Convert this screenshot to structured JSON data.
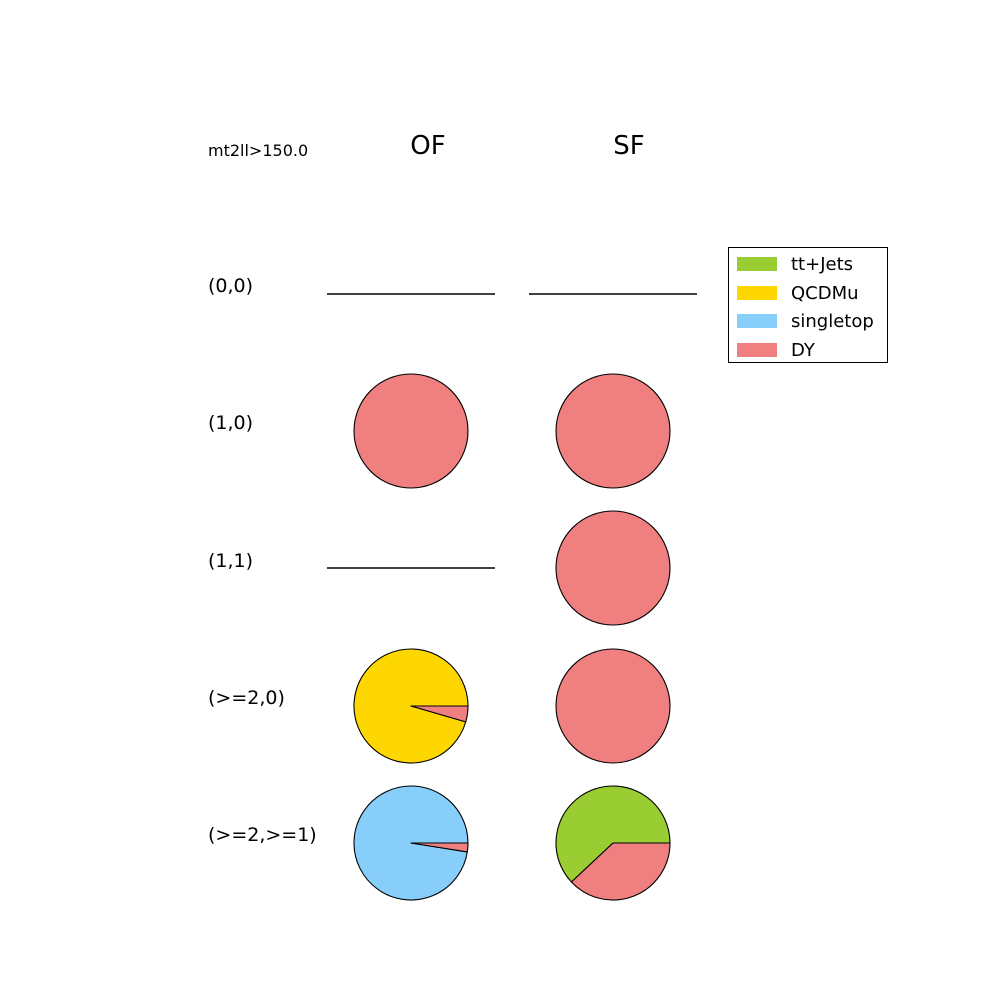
{
  "cut_label": "mt2ll>150.0",
  "columns": [
    "OF",
    "SF"
  ],
  "rows": [
    "(0,0)",
    "(1,0)",
    "(1,1)",
    "(>=2,0)",
    "(>=2,>=1)"
  ],
  "legend": [
    {
      "label": "tt+Jets",
      "color": "#9acd32"
    },
    {
      "label": "QCDMu",
      "color": "#ffd700"
    },
    {
      "label": "singletop",
      "color": "#87cefa"
    },
    {
      "label": "DY",
      "color": "#f08080"
    }
  ],
  "chart_data": {
    "type": "pie",
    "legend_placement": "right",
    "series_names": [
      "tt+Jets",
      "QCDMu",
      "singletop",
      "DY"
    ],
    "grid": [
      {
        "row": "(0,0)",
        "column": "OF",
        "values": [
          0,
          0,
          0,
          0
        ],
        "empty": true
      },
      {
        "row": "(0,0)",
        "column": "SF",
        "values": [
          0,
          0,
          0,
          0
        ],
        "empty": true
      },
      {
        "row": "(1,0)",
        "column": "OF",
        "values": [
          0,
          0,
          0,
          1.0
        ],
        "empty": false
      },
      {
        "row": "(1,0)",
        "column": "SF",
        "values": [
          0,
          0,
          0,
          1.0
        ],
        "empty": false
      },
      {
        "row": "(1,1)",
        "column": "OF",
        "values": [
          0,
          0,
          0,
          0
        ],
        "empty": true
      },
      {
        "row": "(1,1)",
        "column": "SF",
        "values": [
          0,
          0,
          0,
          1.0
        ],
        "empty": false
      },
      {
        "row": "(>=2,0)",
        "column": "OF",
        "values": [
          0,
          0.955,
          0,
          0.045
        ],
        "empty": false
      },
      {
        "row": "(>=2,0)",
        "column": "SF",
        "values": [
          0,
          0,
          0,
          1.0
        ],
        "empty": false
      },
      {
        "row": "(>=2,>=1)",
        "column": "OF",
        "values": [
          0,
          0,
          0.975,
          0.025
        ],
        "empty": false
      },
      {
        "row": "(>=2,>=1)",
        "column": "SF",
        "values": [
          0.62,
          0,
          0,
          0.38
        ],
        "empty": false
      }
    ]
  }
}
